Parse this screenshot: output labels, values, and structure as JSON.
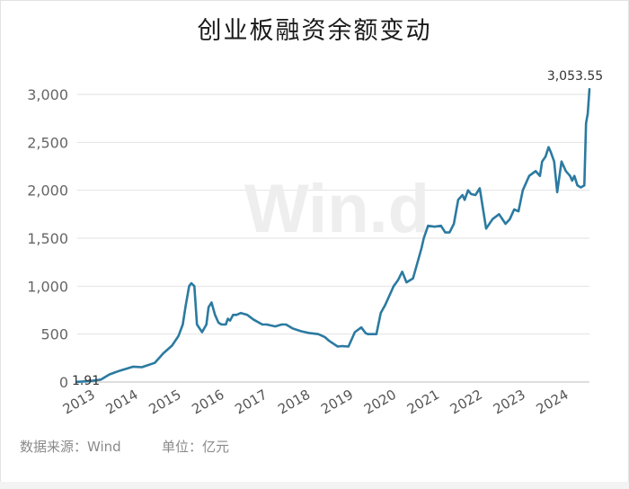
{
  "chart_data": {
    "type": "line",
    "title": "创业板融资余额变动",
    "xlabel": "",
    "ylabel": "",
    "ylim": [
      0,
      3000
    ],
    "yticks": [
      "0",
      "500",
      "1,000",
      "1,500",
      "2,000",
      "2,500",
      "3,000"
    ],
    "ytick_values": [
      0,
      500,
      1000,
      1500,
      2000,
      2500,
      3000
    ],
    "xticks": [
      "2013",
      "2014",
      "2015",
      "2016",
      "2017",
      "2018",
      "2019",
      "2020",
      "2021",
      "2022",
      "2023",
      "2024"
    ],
    "xtick_values": [
      2013,
      2014,
      2015,
      2016,
      2017,
      2018,
      2019,
      2020,
      2021,
      2022,
      2023,
      2024
    ],
    "grid": true,
    "legend": "none",
    "color": "#2b7aa1",
    "start_label": "1.91",
    "end_label": "3,053.55",
    "series": [
      {
        "x": [
          2013.0,
          2013.3,
          2013.55,
          2013.75,
          2014.0,
          2014.3,
          2014.5,
          2014.8,
          2015.0,
          2015.2,
          2015.35,
          2015.45,
          2015.52,
          2015.6,
          2015.65,
          2015.72,
          2015.78,
          2015.9,
          2016.0,
          2016.05,
          2016.12,
          2016.2,
          2016.28,
          2016.35,
          2016.45,
          2016.5,
          2016.55,
          2016.62,
          2016.7,
          2016.8,
          2016.95,
          2017.1,
          2017.3,
          2017.4,
          2017.6,
          2017.75,
          2017.85,
          2018.0,
          2018.2,
          2018.4,
          2018.6,
          2018.75,
          2018.85,
          2018.95,
          2019.05,
          2019.15,
          2019.3,
          2019.45,
          2019.6,
          2019.7,
          2019.75,
          2019.85,
          2019.95,
          2020.05,
          2020.1,
          2020.15,
          2020.25,
          2020.35,
          2020.45,
          2020.55,
          2020.65,
          2020.8,
          2021.0,
          2021.05,
          2021.15,
          2021.3,
          2021.45,
          2021.55,
          2021.65,
          2021.75,
          2021.85,
          2021.95,
          2022.0,
          2022.08,
          2022.15,
          2022.25,
          2022.35,
          2022.5,
          2022.65,
          2022.8,
          2022.95,
          2023.05,
          2023.15,
          2023.25,
          2023.35,
          2023.5,
          2023.65,
          2023.75,
          2023.8,
          2023.88,
          2023.95,
          2024.0,
          2024.08,
          2024.15,
          2024.25,
          2024.35,
          2024.45,
          2024.5,
          2024.55,
          2024.62,
          2024.7,
          2024.78,
          2024.82,
          2024.86,
          2024.9
        ],
        "values": [
          2,
          10,
          25,
          80,
          120,
          160,
          155,
          200,
          300,
          380,
          480,
          600,
          800,
          1000,
          1030,
          1000,
          600,
          520,
          600,
          780,
          830,
          700,
          620,
          600,
          600,
          660,
          640,
          700,
          700,
          720,
          700,
          650,
          600,
          600,
          580,
          600,
          600,
          560,
          530,
          510,
          500,
          470,
          430,
          400,
          370,
          375,
          370,
          520,
          570,
          510,
          500,
          500,
          500,
          720,
          760,
          800,
          900,
          1000,
          1060,
          1150,
          1040,
          1080,
          1400,
          1500,
          1630,
          1620,
          1630,
          1560,
          1560,
          1650,
          1900,
          1950,
          1900,
          2000,
          1960,
          1950,
          2020,
          1600,
          1700,
          1750,
          1650,
          1700,
          1800,
          1780,
          2000,
          2150,
          2200,
          2150,
          2300,
          2350,
          2450,
          2400,
          2300,
          1980,
          2300,
          2200,
          2150,
          2100,
          2150,
          2050,
          2030,
          2050,
          2700,
          2800,
          3054
        ]
      }
    ]
  },
  "footer": {
    "source": "数据来源：Wind",
    "unit": "单位：亿元"
  },
  "watermark": "Win.d"
}
